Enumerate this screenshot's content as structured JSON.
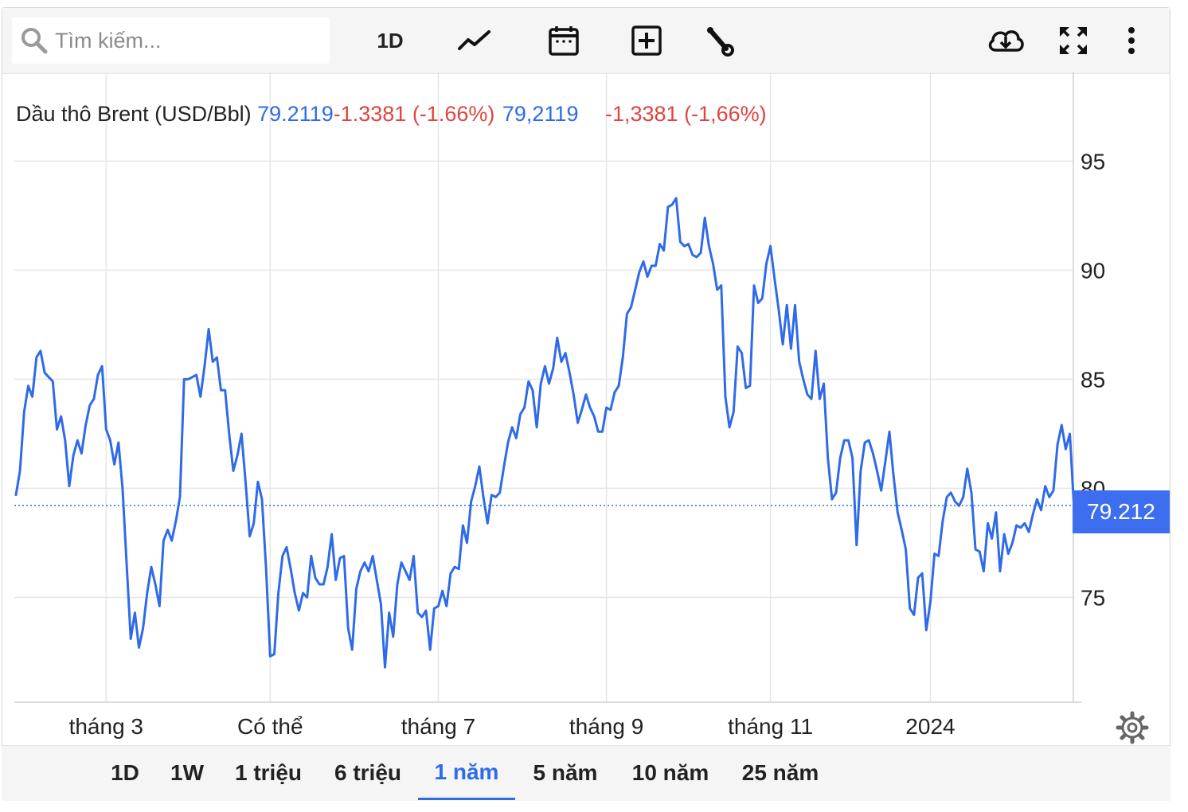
{
  "toolbar": {
    "search_placeholder": "Tìm kiếm...",
    "interval_label": "1D",
    "icons": [
      "search-icon",
      "line-chart-icon",
      "calendar-icon",
      "add-indicator-icon",
      "wrench-icon",
      "cloud-download-icon",
      "fullscreen-icon",
      "more-vertical-icon"
    ]
  },
  "legend": {
    "name": "Dầu thô Brent (USD/Bbl)",
    "price": "79.2119",
    "change": "-1.3381 (-1.66%)",
    "price_alt": "79,2119",
    "change_alt": "-1,3381 (-1,66%)"
  },
  "price_tag": "79.212",
  "colors": {
    "line": "#2f6be8",
    "negative": "#e0443e",
    "accent": "#3d6ef0",
    "grid": "#e6e6e6"
  },
  "ranges": [
    {
      "label": "1D",
      "active": false
    },
    {
      "label": "1W",
      "active": false
    },
    {
      "label": "1 triệu",
      "active": false
    },
    {
      "label": "6 triệu",
      "active": false
    },
    {
      "label": "1 năm",
      "active": true
    },
    {
      "label": "5 năm",
      "active": false
    },
    {
      "label": "10 năm",
      "active": false
    },
    {
      "label": "25 năm",
      "active": false
    }
  ],
  "chart_data": {
    "type": "line",
    "series": [
      {
        "name": "Dầu thô Brent (USD/Bbl)",
        "values": [
          79.7,
          80.8,
          83.5,
          84.7,
          84.2,
          86.0,
          86.3,
          85.3,
          85.1,
          84.9,
          82.7,
          83.3,
          82.2,
          80.1,
          81.5,
          82.2,
          81.6,
          82.9,
          83.8,
          84.1,
          85.2,
          85.6,
          82.7,
          82.2,
          81.1,
          82.1,
          80.0,
          76.5,
          73.1,
          74.3,
          72.7,
          73.6,
          75.2,
          76.4,
          75.6,
          74.6,
          77.6,
          78.1,
          77.6,
          78.5,
          79.6,
          85.0,
          85.0,
          85.1,
          85.2,
          84.2,
          85.6,
          87.3,
          85.8,
          86.0,
          84.5,
          84.5,
          82.5,
          80.8,
          81.5,
          82.5,
          80.3,
          77.8,
          78.4,
          80.3,
          79.5,
          76.3,
          72.3,
          72.4,
          75.2,
          76.9,
          77.3,
          76.3,
          75.2,
          74.4,
          75.2,
          75.0,
          76.9,
          75.9,
          75.6,
          75.6,
          76.4,
          77.9,
          75.8,
          76.8,
          76.9,
          73.6,
          72.6,
          75.4,
          76.2,
          76.6,
          76.2,
          76.9,
          75.8,
          74.7,
          71.8,
          74.3,
          73.2,
          75.6,
          76.6,
          76.2,
          75.8,
          76.9,
          74.3,
          74.1,
          74.4,
          72.6,
          74.5,
          74.6,
          75.3,
          74.6,
          76.1,
          76.4,
          76.3,
          78.3,
          77.5,
          79.4,
          80.1,
          81.0,
          79.6,
          78.4,
          79.7,
          79.6,
          79.8,
          81.0,
          82.1,
          82.8,
          82.3,
          83.4,
          83.7,
          84.9,
          84.5,
          82.8,
          84.8,
          85.6,
          84.8,
          85.5,
          86.9,
          85.8,
          86.2,
          85.3,
          84.3,
          83.0,
          83.6,
          84.3,
          83.7,
          83.3,
          82.6,
          82.6,
          83.7,
          83.6,
          84.4,
          84.7,
          86.0,
          88.0,
          88.3,
          89.1,
          89.9,
          90.4,
          89.7,
          90.2,
          90.2,
          91.2,
          90.9,
          92.9,
          93.0,
          93.3,
          91.3,
          91.1,
          91.2,
          90.7,
          90.6,
          90.8,
          92.4,
          91.1,
          90.3,
          89.1,
          89.3,
          84.2,
          82.8,
          83.5,
          86.5,
          86.2,
          84.6,
          84.7,
          89.3,
          88.5,
          88.7,
          90.3,
          91.1,
          89.6,
          88.2,
          86.6,
          88.4,
          86.4,
          88.4,
          85.8,
          85.0,
          84.3,
          84.1,
          86.3,
          84.1,
          84.8,
          81.4,
          79.5,
          79.8,
          81.4,
          82.2,
          82.2,
          81.4,
          77.4,
          80.8,
          82.1,
          82.2,
          81.6,
          80.8,
          79.9,
          81.2,
          82.6,
          80.6,
          78.9,
          78.1,
          77.2,
          74.5,
          74.2,
          75.9,
          76.1,
          73.5,
          74.8,
          77.0,
          76.9,
          78.5,
          79.6,
          79.8,
          79.4,
          79.2,
          79.6,
          80.9,
          79.8,
          77.2,
          77.1,
          76.2,
          78.4,
          77.7,
          78.9,
          76.2,
          77.9,
          77.0,
          77.5,
          78.3,
          78.2,
          78.4,
          78.0,
          78.8,
          79.5,
          79.0,
          80.1,
          79.6,
          79.9,
          82.0,
          82.9,
          81.8,
          82.5,
          79.2
        ]
      }
    ],
    "x_tick_labels": [
      "tháng 3",
      "Có thể",
      "tháng 7",
      "tháng 9",
      "tháng 11",
      "2024"
    ],
    "x_tick_positions": [
      22,
      62,
      103,
      144,
      184,
      223
    ],
    "y_ticks": [
      75,
      80,
      85,
      90,
      95
    ],
    "ylim": [
      70.2,
      99.1
    ],
    "current_price": 79.2119,
    "grid": true,
    "axis_side": "right"
  }
}
